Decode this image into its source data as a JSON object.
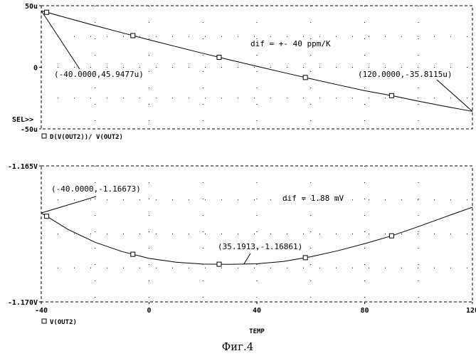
{
  "caption": "Фиг.4",
  "chart_data": [
    {
      "type": "line",
      "title": "",
      "xlabel": "",
      "ylabel": "",
      "xlim": [
        -40,
        120
      ],
      "ylim": [
        -50,
        50
      ],
      "y_ticks": [
        {
          "value": 50,
          "label": "50u"
        },
        {
          "value": 0,
          "label": "0"
        },
        {
          "value": -50,
          "label": "-50u"
        }
      ],
      "sel_marker": "SEL>>",
      "grid": "dotted",
      "legend": "bottom-left",
      "series": [
        {
          "name": "D(V(OUT2))/ V(OUT2)",
          "x": [
            -40,
            -30,
            -20,
            -10,
            0,
            10,
            20,
            30,
            40,
            50,
            60,
            70,
            80,
            90,
            100,
            110,
            120
          ],
          "y": [
            45.9,
            39.8,
            33.8,
            28.0,
            22.3,
            16.8,
            11.3,
            6.0,
            0.8,
            -4.3,
            -9.3,
            -14.2,
            -19.0,
            -23.0,
            -27.5,
            -31.8,
            -35.8
          ],
          "marker_x": [
            -38,
            -6,
            26,
            58,
            90
          ]
        }
      ],
      "annotations": [
        {
          "text": "(-40.0000,45.9477u)",
          "x": -40,
          "y": 45.9477
        },
        {
          "text": "(120.0000,-35.8115u)",
          "x": 120,
          "y": -35.8115
        },
        {
          "text": "dif = +- 40 ppm/K"
        }
      ]
    },
    {
      "type": "line",
      "title": "",
      "xlabel": "TEMP",
      "ylabel": "",
      "xlim": [
        -40,
        120
      ],
      "ylim": [
        -1.17,
        -1.165
      ],
      "x_ticks": [
        {
          "value": -40,
          "label": "-40"
        },
        {
          "value": 0,
          "label": "0"
        },
        {
          "value": 40,
          "label": "40"
        },
        {
          "value": 80,
          "label": "80"
        },
        {
          "value": 120,
          "label": "120"
        }
      ],
      "y_ticks": [
        {
          "value": -1.165,
          "label": "-1.165V"
        },
        {
          "value": -1.17,
          "label": "-1.170V"
        }
      ],
      "grid": "dotted",
      "legend": "bottom-left",
      "series": [
        {
          "name": "V(OUT2)",
          "x": [
            -40,
            -30,
            -20,
            -10,
            0,
            10,
            20,
            30,
            35.19,
            40,
            50,
            60,
            70,
            80,
            90,
            100,
            110,
            120
          ],
          "y": [
            -1.16673,
            -1.16734,
            -1.16781,
            -1.16815,
            -1.1684,
            -1.16854,
            -1.16861,
            -1.16862,
            -1.16861,
            -1.1686,
            -1.16851,
            -1.16834,
            -1.16812,
            -1.16786,
            -1.16757,
            -1.16723,
            -1.16687,
            -1.16652
          ],
          "marker_x": [
            -38,
            -6,
            26,
            58,
            90
          ]
        }
      ],
      "annotations": [
        {
          "text": "(-40.0000,-1.16673)",
          "x": -40,
          "y": -1.16673
        },
        {
          "text": "(35.1913,-1.16861)",
          "x": 35.1913,
          "y": -1.16861
        },
        {
          "text": "dif = 1.88 mV"
        }
      ]
    }
  ]
}
